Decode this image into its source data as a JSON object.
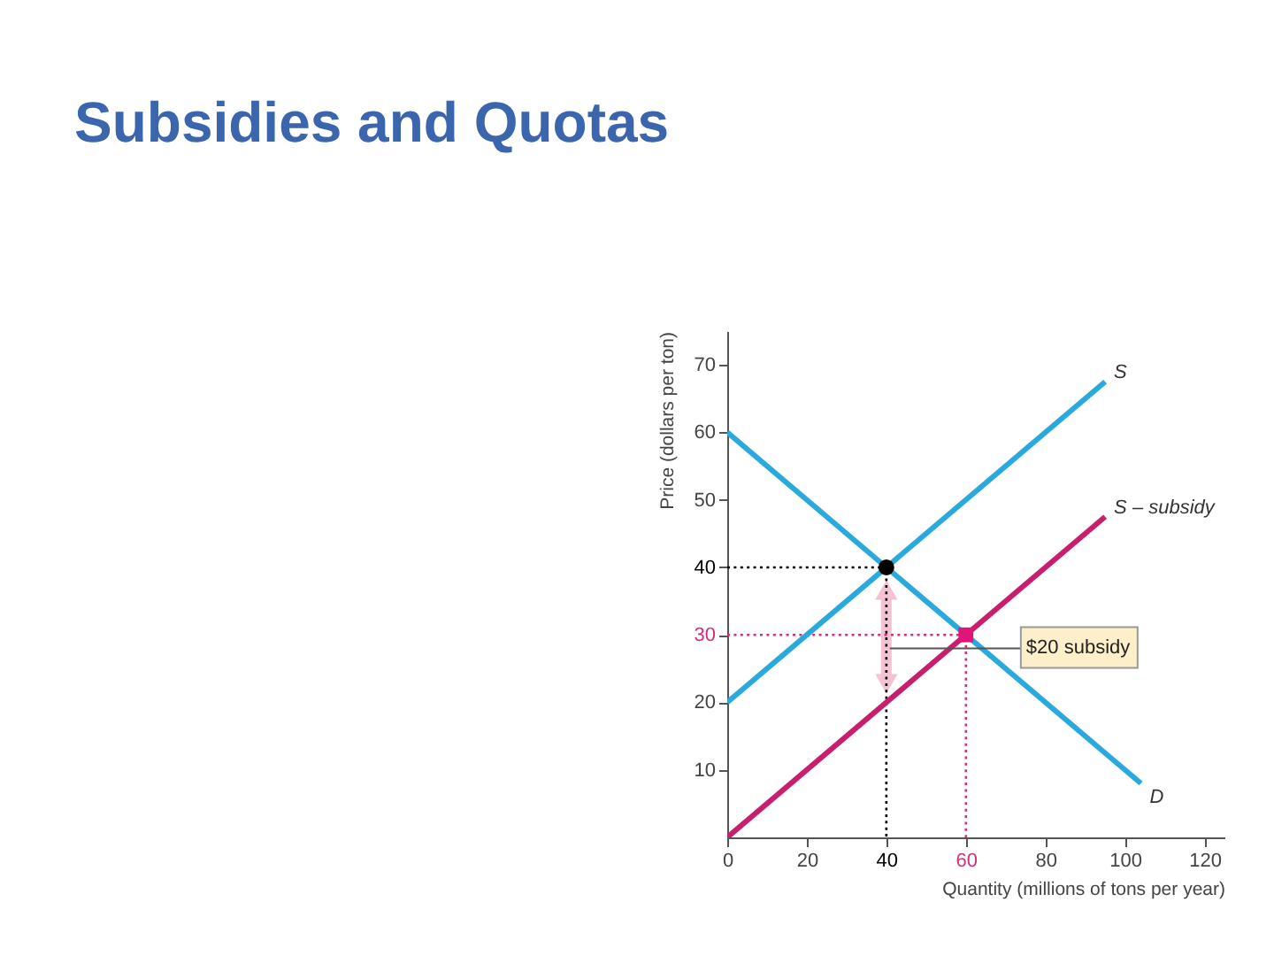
{
  "chart_data": {
    "type": "line",
    "title": "Subsidies and Quotas",
    "xlabel": "Quantity (millions of tons per year)",
    "ylabel": "Price (dollars per ton)",
    "xlim": [
      0,
      125
    ],
    "ylim": [
      0,
      75
    ],
    "xticks": [
      0,
      20,
      40,
      60,
      80,
      100,
      120
    ],
    "yticks": [
      10,
      20,
      30,
      40,
      50,
      60,
      70
    ],
    "grid": false,
    "series": [
      {
        "name": "S",
        "color": "#29a9dc",
        "x": [
          0,
          95
        ],
        "values": [
          20,
          67.5
        ]
      },
      {
        "name": "S – subsidy",
        "color": "#c81e6e",
        "x": [
          0,
          95
        ],
        "values": [
          0,
          47.5
        ]
      },
      {
        "name": "D",
        "color": "#29a9dc",
        "x": [
          0,
          104
        ],
        "values": [
          60,
          8
        ]
      },
      {
        "color": "#000000",
        "line_style": "dotted",
        "x": [
          0,
          40,
          40
        ],
        "values": [
          40,
          40,
          0
        ]
      },
      {
        "color": "#d0307a",
        "line_style": "dotted",
        "x": [
          0,
          60,
          60
        ],
        "values": [
          30,
          30,
          0
        ]
      },
      {
        "type": "scatter",
        "color": "#000000",
        "marker": "circle",
        "x": [
          40
        ],
        "values": [
          40
        ]
      },
      {
        "type": "scatter",
        "color": "#e0157a",
        "marker": "square",
        "x": [
          60
        ],
        "values": [
          30
        ]
      }
    ],
    "annotations": [
      {
        "text": "$20 subsidy",
        "x": 40,
        "y": 28
      }
    ]
  }
}
